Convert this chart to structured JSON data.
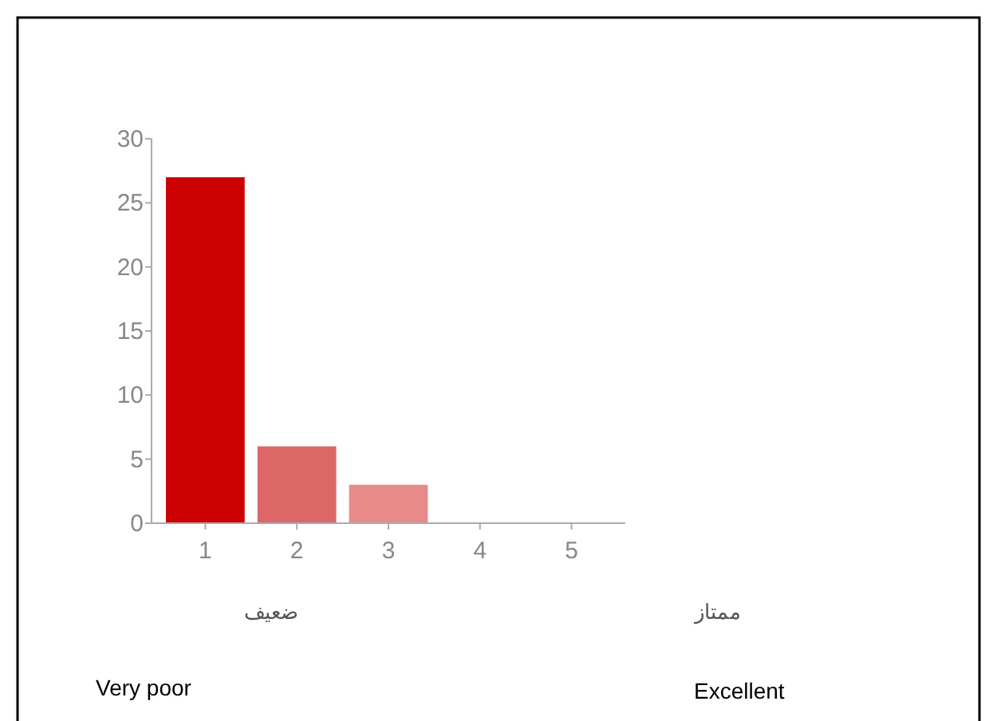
{
  "chart_data": {
    "type": "bar",
    "categories": [
      "1",
      "2",
      "3",
      "4",
      "5"
    ],
    "values": [
      27,
      6,
      3,
      0,
      0
    ],
    "colors": [
      "#cc0000",
      "#dd6666",
      "#e88a8a",
      "#e88a8a",
      "#e88a8a"
    ],
    "ylim": [
      0,
      30
    ],
    "yticks": [
      0,
      5,
      10,
      15,
      20,
      25,
      30
    ],
    "annotations": [
      "ضعيف",
      "ممتاز",
      "Very poor",
      "Excellent"
    ]
  }
}
